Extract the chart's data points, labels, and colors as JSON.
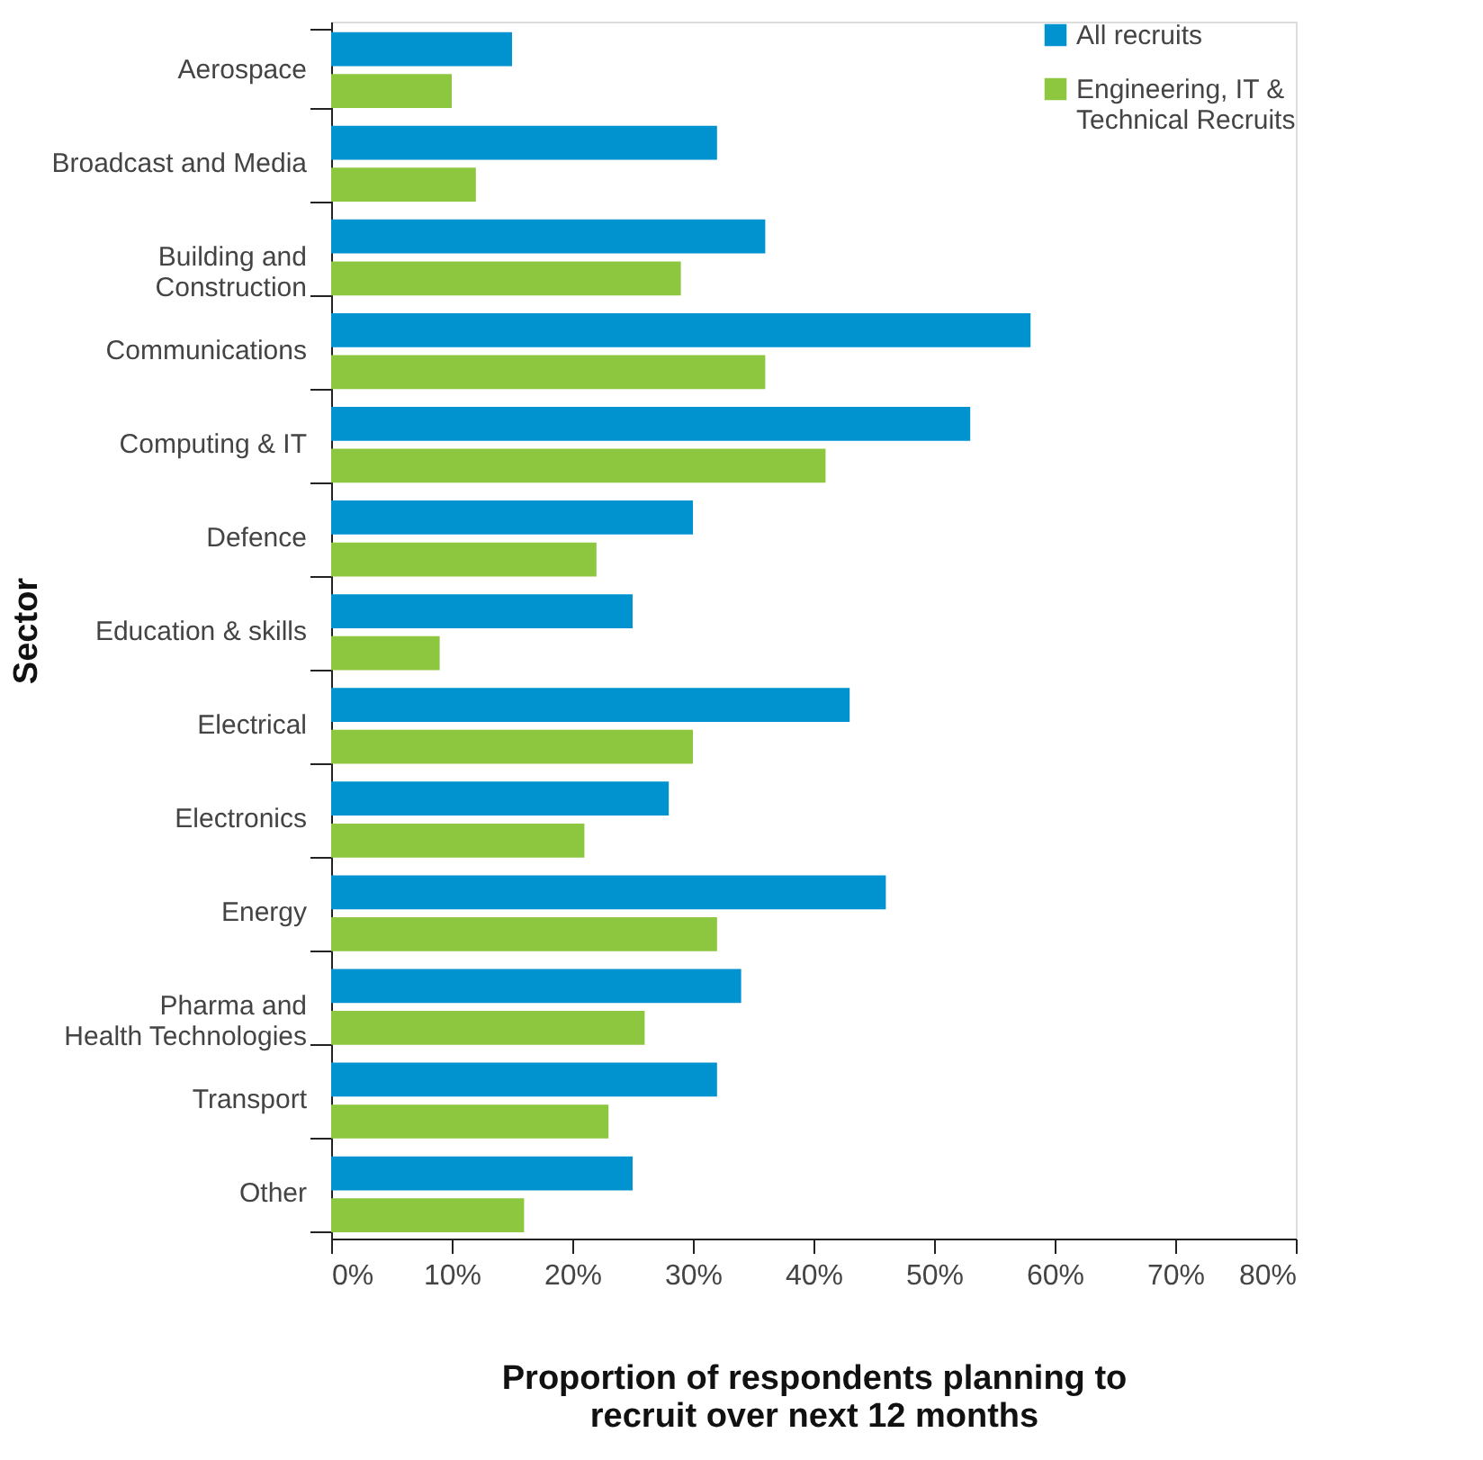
{
  "chart_data": {
    "type": "bar",
    "orientation": "horizontal",
    "categories": [
      "Aerospace",
      "Broadcast and Media",
      "Building and\nConstruction",
      "Communications",
      "Computing & IT",
      "Defence",
      "Education & skills",
      "Electrical",
      "Electronics",
      "Energy",
      "Pharma and\nHealth Technologies",
      "Transport",
      "Other"
    ],
    "series": [
      {
        "name": "All recruits",
        "color": "#0093d0",
        "values": [
          15,
          32,
          36,
          58,
          53,
          30,
          25,
          43,
          28,
          46,
          34,
          32,
          25
        ]
      },
      {
        "name": "Engineering, IT &\nTechnical Recruits",
        "color": "#8dc63f",
        "values": [
          10,
          12,
          29,
          36,
          41,
          22,
          9,
          30,
          21,
          32,
          26,
          23,
          16
        ]
      }
    ],
    "xlabel": "Proportion of respondents planning to\nrecruit over next 12 months",
    "ylabel": "Sector",
    "xlim": [
      0,
      80
    ],
    "xticks": [
      {
        "value": 0,
        "label": "0%"
      },
      {
        "value": 10,
        "label": "10%"
      },
      {
        "value": 20,
        "label": "20%"
      },
      {
        "value": 30,
        "label": "30%"
      },
      {
        "value": 40,
        "label": "40%"
      },
      {
        "value": 50,
        "label": "50%"
      },
      {
        "value": 60,
        "label": "60%"
      },
      {
        "value": 70,
        "label": "70%"
      },
      {
        "value": 80,
        "label": "80%"
      }
    ],
    "grid": false,
    "legend": "top right"
  }
}
